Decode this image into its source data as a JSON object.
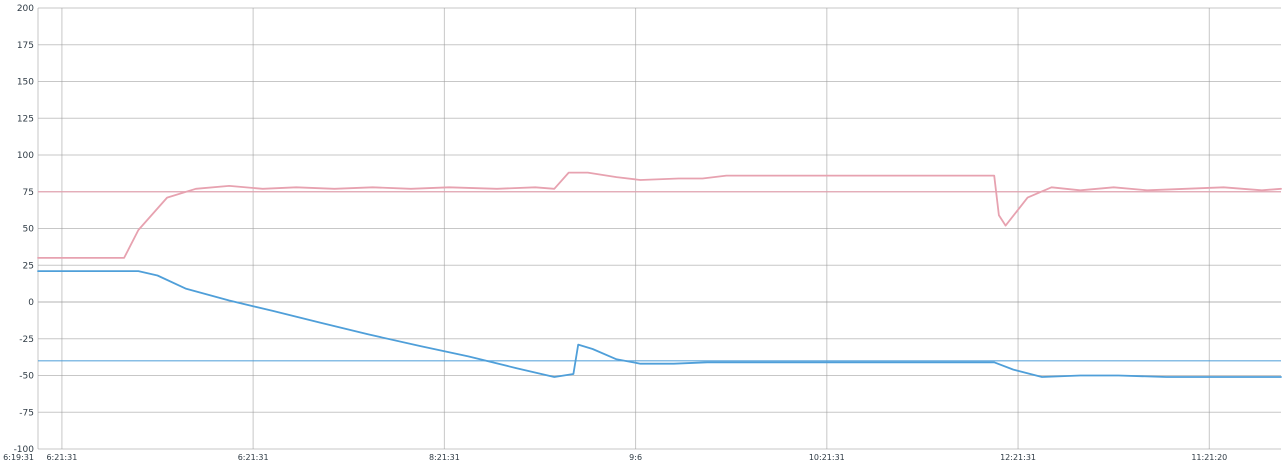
{
  "chart_data": {
    "type": "line",
    "title": "",
    "xlabel": "",
    "ylabel": "",
    "xlim": [
      0,
      13
    ],
    "ylim": [
      -100,
      200
    ],
    "grid": true,
    "legend": "none",
    "y_ticks": [
      {
        "value": 200,
        "label": "200"
      },
      {
        "value": 175,
        "label": "175"
      },
      {
        "value": 150,
        "label": "150"
      },
      {
        "value": 125,
        "label": "125"
      },
      {
        "value": 100,
        "label": "100"
      },
      {
        "value": 75,
        "label": "75"
      },
      {
        "value": 50,
        "label": "50"
      },
      {
        "value": 25,
        "label": "25"
      },
      {
        "value": 0,
        "label": "0"
      },
      {
        "value": -25,
        "label": "-25"
      },
      {
        "value": -50,
        "label": "-50"
      },
      {
        "value": -75,
        "label": "-75"
      },
      {
        "value": -100,
        "label": "-100"
      }
    ],
    "x_ticks": [
      {
        "value": 0,
        "label": "6:19:31"
      },
      {
        "value": 0.25,
        "label": "6:21:31"
      },
      {
        "value": 2.25,
        "label": "6:21:31"
      },
      {
        "value": 4.25,
        "label": "8:21:31"
      },
      {
        "value": 6.25,
        "label": "9:6"
      },
      {
        "value": 8.25,
        "label": "10:21:31"
      },
      {
        "value": 10.25,
        "label": "12:21:31"
      },
      {
        "value": 12.25,
        "label": "11:21:20"
      }
    ],
    "reference_lines": [
      {
        "y": -40,
        "color": "#4f9fd9"
      },
      {
        "y": 75,
        "color": "#e7a2b0"
      }
    ],
    "series": [
      {
        "color": "#e7a2b0",
        "x": [
          0,
          0.9,
          1.05,
          1.35,
          1.65,
          2.0,
          2.35,
          2.7,
          3.1,
          3.5,
          3.9,
          4.3,
          4.8,
          5.2,
          5.4,
          5.55,
          5.75,
          6.05,
          6.3,
          6.7,
          6.95,
          7.2,
          7.7,
          8.2,
          8.7,
          9.2,
          9.7,
          10.0,
          10.05,
          10.12,
          10.35,
          10.6,
          10.9,
          11.25,
          11.6,
          12.0,
          12.4,
          12.8,
          13.0
        ],
        "values": [
          30,
          30,
          49,
          71,
          77,
          79,
          77,
          78,
          77,
          78,
          77,
          78,
          77,
          78,
          77,
          88,
          88,
          85,
          83,
          84,
          84,
          86,
          86,
          86,
          86,
          86,
          86,
          86,
          59,
          52,
          71,
          78,
          76,
          78,
          76,
          77,
          78,
          76,
          77
        ]
      },
      {
        "color": "#4f9fd9",
        "x": [
          0,
          0.5,
          1.05,
          1.25,
          1.55,
          2.0,
          2.45,
          2.95,
          3.45,
          4.0,
          4.5,
          5.0,
          5.4,
          5.6,
          5.65,
          5.8,
          6.05,
          6.3,
          6.65,
          7.0,
          7.5,
          8.0,
          8.5,
          9.0,
          9.5,
          10.0,
          10.2,
          10.5,
          10.9,
          11.3,
          11.8,
          12.3,
          12.8,
          13.0
        ],
        "values": [
          21,
          21,
          21,
          18,
          9,
          1,
          -6,
          -14,
          -22,
          -30,
          -37,
          -45,
          -51,
          -49,
          -29,
          -32,
          -39,
          -42,
          -42,
          -41,
          -41,
          -41,
          -41,
          -41,
          -41,
          -41,
          -46,
          -51,
          -50,
          -50,
          -51,
          -51,
          -51,
          -51
        ]
      }
    ]
  }
}
